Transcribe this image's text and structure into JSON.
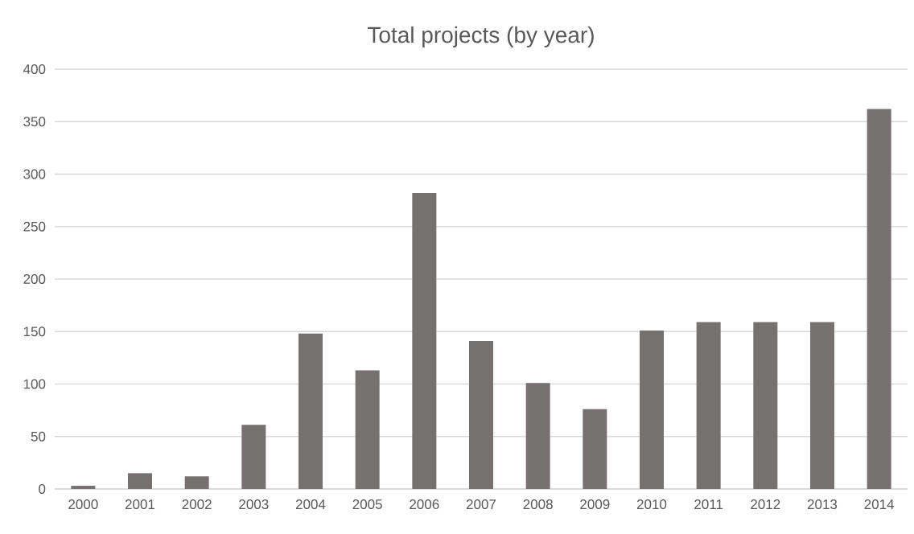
{
  "chart_data": {
    "type": "bar",
    "title": "Total projects (by year)",
    "categories": [
      "2000",
      "2001",
      "2002",
      "2003",
      "2004",
      "2005",
      "2006",
      "2007",
      "2008",
      "2009",
      "2010",
      "2011",
      "2012",
      "2013",
      "2014"
    ],
    "values": [
      3,
      15,
      12,
      61,
      148,
      113,
      282,
      141,
      101,
      76,
      151,
      159,
      159,
      159,
      362
    ],
    "color": "#767171",
    "ylim": [
      0,
      400
    ],
    "yticks": [
      0,
      50,
      100,
      150,
      200,
      250,
      300,
      350,
      400
    ],
    "grid": "y"
  }
}
